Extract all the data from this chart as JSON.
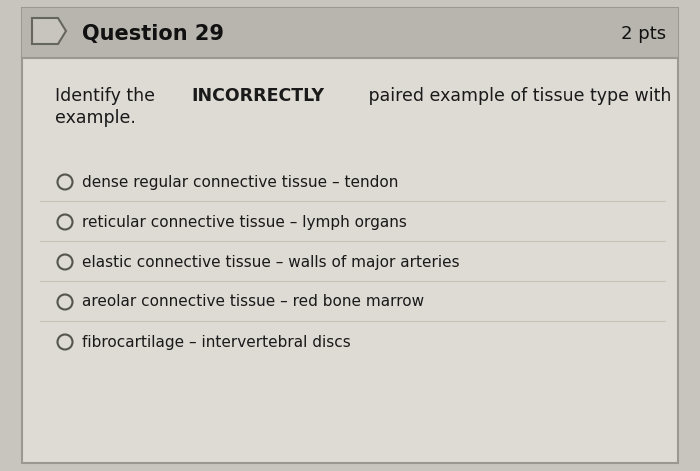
{
  "question_number": "Question 29",
  "points": "2 pts",
  "options": [
    "dense regular connective tissue – tendon",
    "reticular connective tissue – lymph organs",
    "elastic connective tissue – walls of major arteries",
    "areolar connective tissue – red bone marrow",
    "fibrocartilage – intervertebral discs"
  ],
  "bg_color": "#c8c5be",
  "header_bg": "#b8b5ae",
  "box_bg": "#dedad4",
  "border_color": "#999990",
  "text_color": "#1a1a1a",
  "header_text_color": "#111111",
  "separator_color": "#bbbbaa",
  "fig_width": 7.0,
  "fig_height": 4.71,
  "dpi": 100
}
